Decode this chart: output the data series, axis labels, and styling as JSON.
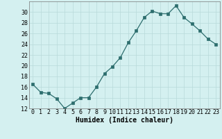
{
  "x": [
    0,
    1,
    2,
    3,
    4,
    5,
    6,
    7,
    8,
    9,
    10,
    11,
    12,
    13,
    14,
    15,
    16,
    17,
    18,
    19,
    20,
    21,
    22,
    23
  ],
  "y": [
    16.5,
    15.0,
    14.8,
    13.8,
    12.0,
    13.0,
    14.0,
    14.0,
    16.0,
    18.5,
    19.8,
    21.5,
    24.3,
    26.5,
    29.0,
    30.2,
    29.7,
    29.7,
    31.2,
    29.0,
    27.8,
    26.5,
    25.0,
    24.0
  ],
  "xlabel": "Humidex (Indice chaleur)",
  "ylim": [
    12,
    32
  ],
  "xlim": [
    -0.5,
    23.5
  ],
  "yticks": [
    12,
    14,
    16,
    18,
    20,
    22,
    24,
    26,
    28,
    30
  ],
  "xticks": [
    0,
    1,
    2,
    3,
    4,
    5,
    6,
    7,
    8,
    9,
    10,
    11,
    12,
    13,
    14,
    15,
    16,
    17,
    18,
    19,
    20,
    21,
    22,
    23
  ],
  "line_color": "#2d6e6e",
  "marker_color": "#2d6e6e",
  "bg_color": "#d4f0f0",
  "grid_color": "#b8dada",
  "xlabel_fontsize": 7,
  "tick_fontsize": 6
}
